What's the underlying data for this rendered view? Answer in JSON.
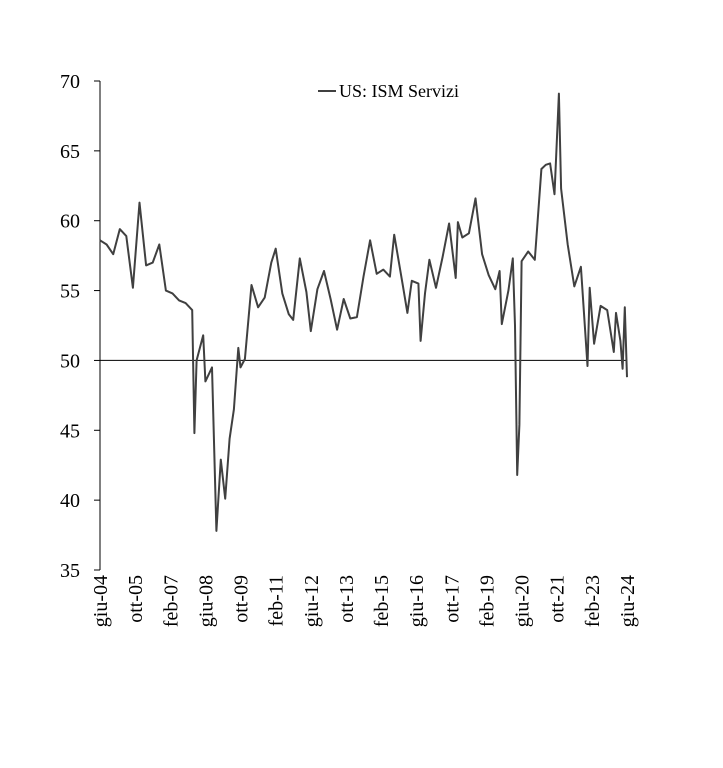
{
  "chart_data": {
    "type": "line",
    "title": "",
    "xlabel": "",
    "ylabel": "",
    "ylim": [
      35,
      70
    ],
    "yticks": [
      35,
      40,
      45,
      50,
      55,
      60,
      65,
      70
    ],
    "reference_line": 50,
    "legend": {
      "position": "top-center",
      "entries": [
        "US: ISM Servizi"
      ]
    },
    "x_tick_labels": [
      "giu-04",
      "ott-05",
      "feb-07",
      "giu-08",
      "ott-09",
      "feb-11",
      "giu-12",
      "ott-13",
      "feb-15",
      "giu-16",
      "ott-17",
      "feb-19",
      "giu-20",
      "ott-21",
      "feb-23",
      "giu-24"
    ],
    "x_start": "2004-06",
    "x_end": "2024-06",
    "series": [
      {
        "name": "US: ISM Servizi",
        "color": "#404040",
        "points": [
          [
            "2004-06",
            58.6
          ],
          [
            "2004-09",
            58.3
          ],
          [
            "2004-12",
            57.6
          ],
          [
            "2005-03",
            59.4
          ],
          [
            "2005-06",
            58.9
          ],
          [
            "2005-09",
            55.2
          ],
          [
            "2005-12",
            61.3
          ],
          [
            "2006-03",
            56.8
          ],
          [
            "2006-06",
            57.0
          ],
          [
            "2006-09",
            58.3
          ],
          [
            "2006-12",
            55.0
          ],
          [
            "2007-03",
            54.8
          ],
          [
            "2007-06",
            54.3
          ],
          [
            "2007-09",
            54.1
          ],
          [
            "2007-12",
            53.6
          ],
          [
            "2008-01",
            44.8
          ],
          [
            "2008-02",
            50.0
          ],
          [
            "2008-05",
            51.8
          ],
          [
            "2008-06",
            48.5
          ],
          [
            "2008-09",
            49.5
          ],
          [
            "2008-11",
            37.8
          ],
          [
            "2009-01",
            42.9
          ],
          [
            "2009-03",
            40.1
          ],
          [
            "2009-05",
            44.4
          ],
          [
            "2009-07",
            46.5
          ],
          [
            "2009-09",
            50.9
          ],
          [
            "2009-10",
            49.5
          ],
          [
            "2009-12",
            50.1
          ],
          [
            "2010-03",
            55.4
          ],
          [
            "2010-06",
            53.8
          ],
          [
            "2010-09",
            54.5
          ],
          [
            "2010-12",
            57.0
          ],
          [
            "2011-02",
            58.0
          ],
          [
            "2011-05",
            54.8
          ],
          [
            "2011-08",
            53.3
          ],
          [
            "2011-10",
            52.9
          ],
          [
            "2012-01",
            57.3
          ],
          [
            "2012-04",
            54.9
          ],
          [
            "2012-06",
            52.1
          ],
          [
            "2012-09",
            55.1
          ],
          [
            "2012-12",
            56.4
          ],
          [
            "2013-03",
            54.4
          ],
          [
            "2013-06",
            52.2
          ],
          [
            "2013-09",
            54.4
          ],
          [
            "2013-12",
            53.0
          ],
          [
            "2014-03",
            53.1
          ],
          [
            "2014-06",
            56.0
          ],
          [
            "2014-09",
            58.6
          ],
          [
            "2014-12",
            56.2
          ],
          [
            "2015-03",
            56.5
          ],
          [
            "2015-06",
            56.0
          ],
          [
            "2015-08",
            59.0
          ],
          [
            "2015-12",
            55.3
          ],
          [
            "2016-02",
            53.4
          ],
          [
            "2016-04",
            55.7
          ],
          [
            "2016-07",
            55.5
          ],
          [
            "2016-08",
            51.4
          ],
          [
            "2016-10",
            54.8
          ],
          [
            "2016-12",
            57.2
          ],
          [
            "2017-03",
            55.2
          ],
          [
            "2017-06",
            57.4
          ],
          [
            "2017-09",
            59.8
          ],
          [
            "2017-12",
            55.9
          ],
          [
            "2018-01",
            59.9
          ],
          [
            "2018-03",
            58.8
          ],
          [
            "2018-06",
            59.1
          ],
          [
            "2018-09",
            61.6
          ],
          [
            "2018-12",
            57.6
          ],
          [
            "2019-03",
            56.1
          ],
          [
            "2019-06",
            55.1
          ],
          [
            "2019-08",
            56.4
          ],
          [
            "2019-09",
            52.6
          ],
          [
            "2019-12",
            55.0
          ],
          [
            "2020-02",
            57.3
          ],
          [
            "2020-03",
            52.5
          ],
          [
            "2020-04",
            41.8
          ],
          [
            "2020-05",
            45.4
          ],
          [
            "2020-06",
            57.1
          ],
          [
            "2020-09",
            57.8
          ],
          [
            "2020-12",
            57.2
          ],
          [
            "2021-03",
            63.7
          ],
          [
            "2021-05",
            64.0
          ],
          [
            "2021-07",
            64.1
          ],
          [
            "2021-09",
            61.9
          ],
          [
            "2021-11",
            69.1
          ],
          [
            "2021-12",
            62.3
          ],
          [
            "2022-03",
            58.3
          ],
          [
            "2022-06",
            55.3
          ],
          [
            "2022-09",
            56.7
          ],
          [
            "2022-12",
            49.6
          ],
          [
            "2023-01",
            55.2
          ],
          [
            "2023-03",
            51.2
          ],
          [
            "2023-06",
            53.9
          ],
          [
            "2023-09",
            53.6
          ],
          [
            "2023-12",
            50.6
          ],
          [
            "2024-01",
            53.4
          ],
          [
            "2024-03",
            51.4
          ],
          [
            "2024-04",
            49.4
          ],
          [
            "2024-05",
            53.8
          ],
          [
            "2024-06",
            48.8
          ]
        ]
      }
    ]
  }
}
